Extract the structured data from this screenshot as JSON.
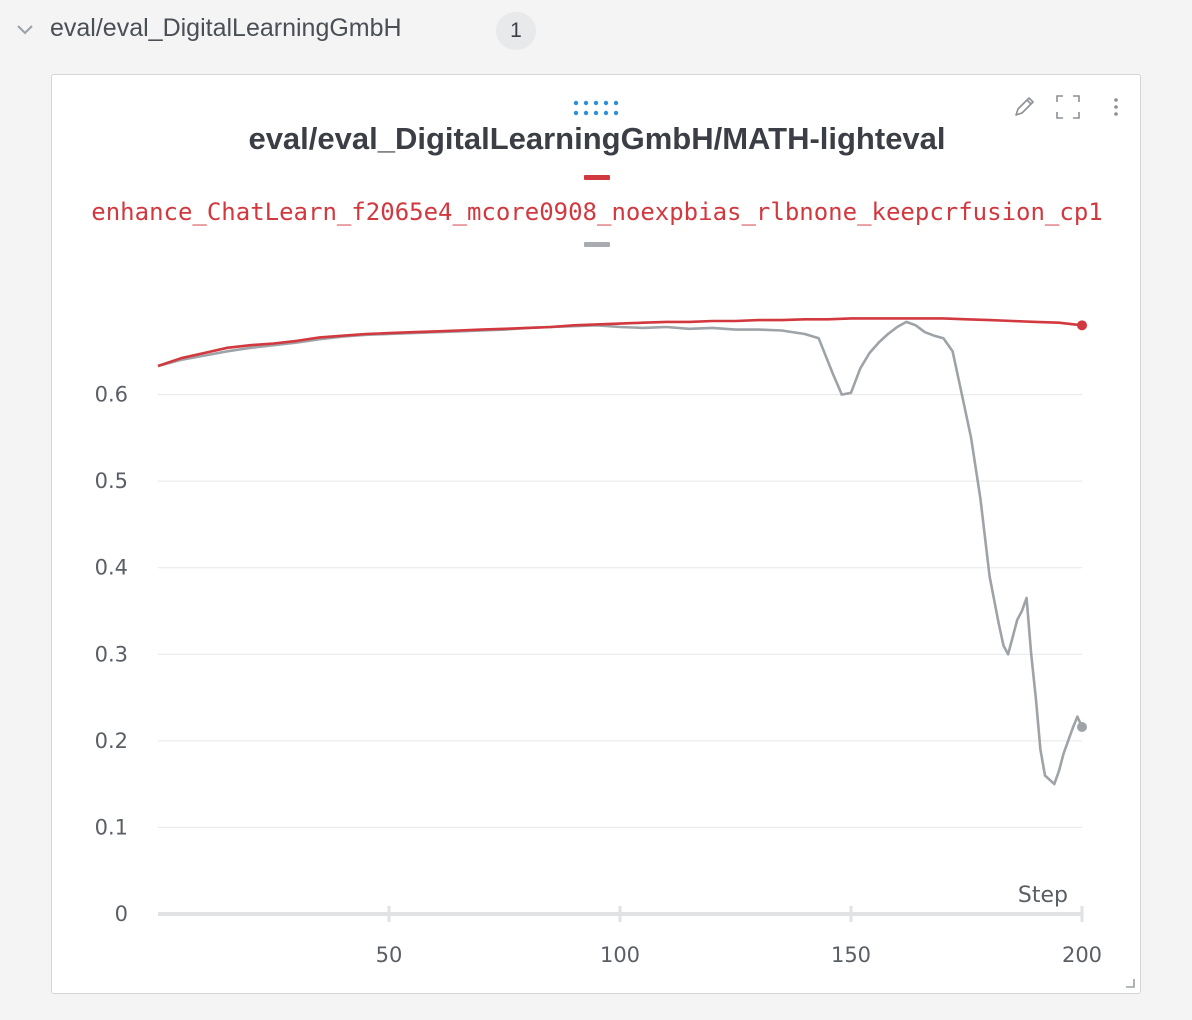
{
  "section": {
    "title": "eval/eval_DigitalLearningGmbH",
    "count": "1"
  },
  "panel": {
    "title": "eval/eval_DigitalLearningGmbH/MATH-lighteval"
  },
  "colors": {
    "series_red": "#d1393f",
    "series_gray": "#9ea3a8",
    "grid": "#e6e7e9",
    "drag_handle": "#2f8fd8"
  },
  "icons": [
    "chevron-down-icon",
    "drag-handle-icon",
    "edit-icon",
    "fullscreen-icon",
    "more-icon",
    "resize-icon"
  ],
  "chart_data": {
    "type": "line",
    "title": "eval/eval_DigitalLearningGmbH/MATH-lighteval",
    "xlabel": "Step",
    "ylabel": "",
    "xlim": [
      0,
      200
    ],
    "ylim": [
      0,
      0.7
    ],
    "xticks": [
      50,
      100,
      150,
      200
    ],
    "yticks": [
      0,
      0.1,
      0.2,
      0.3,
      0.4,
      0.5,
      0.6
    ],
    "grid": true,
    "legend": "top",
    "series": [
      {
        "name": "enhance_ChatLearn_f2065e4_mcore0908_noexpbias_rlbnone_keepcrfusion_cp1",
        "color": "#d1393f",
        "points": [
          [
            0,
            0.633
          ],
          [
            5,
            0.642
          ],
          [
            10,
            0.648
          ],
          [
            15,
            0.654
          ],
          [
            20,
            0.657
          ],
          [
            25,
            0.659
          ],
          [
            30,
            0.662
          ],
          [
            35,
            0.666
          ],
          [
            40,
            0.668
          ],
          [
            45,
            0.67
          ],
          [
            50,
            0.671
          ],
          [
            55,
            0.672
          ],
          [
            60,
            0.673
          ],
          [
            65,
            0.674
          ],
          [
            70,
            0.675
          ],
          [
            75,
            0.676
          ],
          [
            80,
            0.677
          ],
          [
            85,
            0.678
          ],
          [
            90,
            0.68
          ],
          [
            95,
            0.681
          ],
          [
            100,
            0.682
          ],
          [
            105,
            0.683
          ],
          [
            110,
            0.684
          ],
          [
            115,
            0.684
          ],
          [
            120,
            0.685
          ],
          [
            125,
            0.685
          ],
          [
            130,
            0.686
          ],
          [
            135,
            0.686
          ],
          [
            140,
            0.687
          ],
          [
            145,
            0.687
          ],
          [
            150,
            0.688
          ],
          [
            155,
            0.688
          ],
          [
            160,
            0.688
          ],
          [
            165,
            0.688
          ],
          [
            170,
            0.688
          ],
          [
            175,
            0.687
          ],
          [
            180,
            0.686
          ],
          [
            185,
            0.685
          ],
          [
            190,
            0.684
          ],
          [
            195,
            0.683
          ],
          [
            200,
            0.68
          ]
        ]
      },
      {
        "name": "",
        "color": "#9ea3a8",
        "points": [
          [
            0,
            0.633
          ],
          [
            5,
            0.64
          ],
          [
            10,
            0.645
          ],
          [
            15,
            0.65
          ],
          [
            20,
            0.654
          ],
          [
            25,
            0.657
          ],
          [
            30,
            0.66
          ],
          [
            35,
            0.664
          ],
          [
            40,
            0.667
          ],
          [
            45,
            0.669
          ],
          [
            50,
            0.67
          ],
          [
            55,
            0.671
          ],
          [
            60,
            0.672
          ],
          [
            65,
            0.673
          ],
          [
            70,
            0.674
          ],
          [
            75,
            0.675
          ],
          [
            80,
            0.677
          ],
          [
            85,
            0.678
          ],
          [
            90,
            0.679
          ],
          [
            95,
            0.68
          ],
          [
            100,
            0.678
          ],
          [
            105,
            0.677
          ],
          [
            110,
            0.678
          ],
          [
            115,
            0.676
          ],
          [
            120,
            0.677
          ],
          [
            125,
            0.675
          ],
          [
            130,
            0.675
          ],
          [
            135,
            0.674
          ],
          [
            140,
            0.67
          ],
          [
            143,
            0.665
          ],
          [
            146,
            0.625
          ],
          [
            148,
            0.6
          ],
          [
            150,
            0.602
          ],
          [
            152,
            0.63
          ],
          [
            154,
            0.648
          ],
          [
            156,
            0.66
          ],
          [
            158,
            0.67
          ],
          [
            160,
            0.678
          ],
          [
            162,
            0.684
          ],
          [
            164,
            0.68
          ],
          [
            166,
            0.672
          ],
          [
            168,
            0.668
          ],
          [
            170,
            0.665
          ],
          [
            172,
            0.65
          ],
          [
            174,
            0.6
          ],
          [
            176,
            0.55
          ],
          [
            178,
            0.48
          ],
          [
            180,
            0.39
          ],
          [
            182,
            0.335
          ],
          [
            183,
            0.31
          ],
          [
            184,
            0.3
          ],
          [
            185,
            0.32
          ],
          [
            186,
            0.34
          ],
          [
            187,
            0.35
          ],
          [
            188,
            0.365
          ],
          [
            189,
            0.3
          ],
          [
            190,
            0.25
          ],
          [
            191,
            0.19
          ],
          [
            192,
            0.16
          ],
          [
            193,
            0.155
          ],
          [
            194,
            0.15
          ],
          [
            195,
            0.165
          ],
          [
            196,
            0.185
          ],
          [
            197,
            0.2
          ],
          [
            198,
            0.215
          ],
          [
            199,
            0.228
          ],
          [
            200,
            0.216
          ]
        ]
      }
    ]
  }
}
